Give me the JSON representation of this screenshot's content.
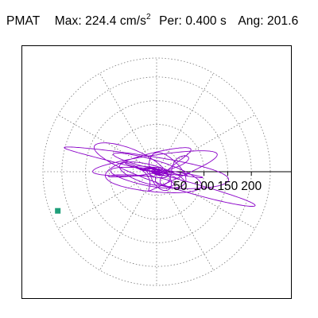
{
  "header": {
    "component": "PMAT",
    "max_label": "Max:",
    "max_value": "224.4",
    "max_unit_base": "cm/s",
    "max_unit_exp": "2",
    "per_label": "Per:",
    "per_value": "0.400 s",
    "ang_label": "Ang:",
    "ang_value": "201.6"
  },
  "chart_data": {
    "type": "polar-orbit",
    "radial_ticks": [
      50,
      100,
      150,
      200
    ],
    "radial_tick_labels": [
      "50",
      "100",
      "150",
      "200"
    ],
    "r_max": 240,
    "spokes_deg": [
      0,
      30,
      60,
      90,
      120,
      150,
      180,
      210,
      240,
      270,
      300,
      330
    ],
    "grid": true,
    "series": [
      {
        "color": "#8a00c8",
        "values": "response orbit trace (horizontal ground motion)"
      }
    ],
    "peak_marker": {
      "angle_deg": 201.6,
      "radius": 224.4,
      "color": "#1f9f7a"
    }
  }
}
